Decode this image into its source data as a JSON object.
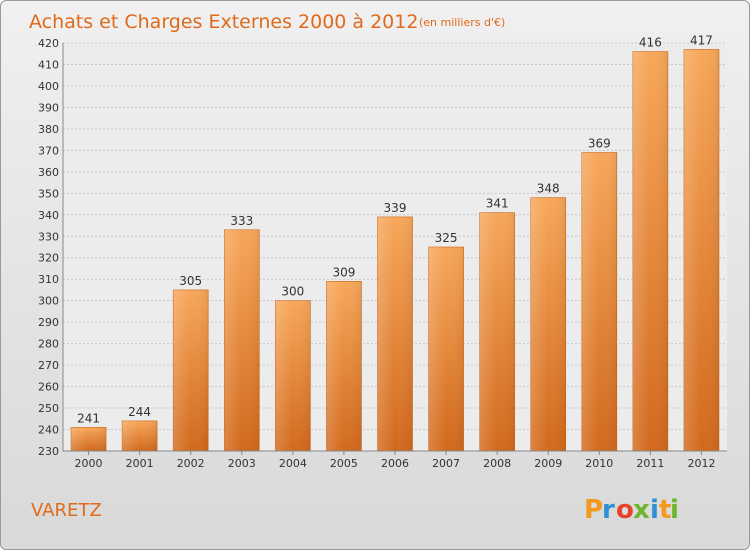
{
  "chart_data": {
    "type": "bar",
    "title": "Achats et Charges Externes 2000 à 2012",
    "subtitle": "(en milliers d'€)",
    "categories": [
      "2000",
      "2001",
      "2002",
      "2003",
      "2004",
      "2005",
      "2006",
      "2007",
      "2008",
      "2009",
      "2010",
      "2011",
      "2012"
    ],
    "values": [
      241,
      244,
      305,
      333,
      300,
      309,
      339,
      325,
      341,
      348,
      369,
      416,
      417
    ],
    "value_labels": [
      "241",
      "244",
      "305",
      "333",
      "300",
      "309",
      "339",
      "325",
      "341",
      "348",
      "369",
      "416",
      "417"
    ],
    "ylim": [
      230,
      420
    ],
    "yticks": [
      "230",
      "240",
      "250",
      "260",
      "270",
      "280",
      "290",
      "300",
      "310",
      "320",
      "330",
      "340",
      "350",
      "360",
      "370",
      "380",
      "390",
      "400",
      "410",
      "420"
    ],
    "grid": true,
    "xlabel": "",
    "ylabel": "",
    "bar_color_top": "#f7a75a",
    "bar_color_bottom": "#d2691c"
  },
  "footer": {
    "commune": "VARETZ",
    "brand_letters": [
      "P",
      "r",
      "o",
      "x",
      "i",
      "t",
      "i"
    ],
    "brand_colors": [
      "#f29a1e",
      "#2f8fd2",
      "#e8432a",
      "#6cb52d",
      "#2f8fd2",
      "#f29a1e",
      "#6cb52d"
    ]
  }
}
